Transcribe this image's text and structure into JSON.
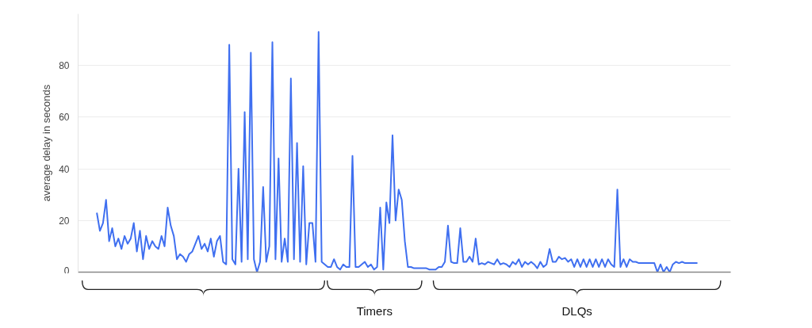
{
  "chart_data": {
    "type": "line",
    "ylabel": "average delay in seconds",
    "categories": [
      null,
      null,
      null,
      null,
      null,
      null,
      null,
      null,
      null,
      null,
      null,
      null,
      null,
      null,
      null,
      null,
      null,
      null,
      null,
      null,
      null,
      null,
      null,
      null,
      null,
      null,
      null,
      null,
      null,
      null,
      null,
      null,
      null,
      null,
      null,
      null,
      null,
      null,
      null,
      null,
      null,
      null,
      null,
      null,
      null,
      null,
      null,
      null,
      null,
      null,
      null,
      null,
      null,
      null,
      null,
      null,
      null,
      null,
      null,
      null,
      null,
      null,
      null,
      null,
      null,
      null,
      null,
      null,
      null,
      null,
      null,
      null,
      null,
      null,
      null,
      null,
      null,
      null,
      null,
      null,
      null,
      null,
      null,
      null,
      null,
      null,
      null,
      null,
      null,
      null,
      null,
      null,
      null,
      null,
      null,
      null,
      null,
      null,
      null,
      null,
      null,
      null,
      null,
      null,
      null,
      null,
      null,
      null,
      null,
      null,
      null,
      null,
      null,
      null,
      null,
      null,
      null,
      null,
      null,
      null,
      null,
      null,
      null,
      null,
      null,
      null,
      null,
      null,
      null,
      null,
      null,
      null,
      null,
      null,
      null,
      null,
      null,
      null,
      null,
      null,
      null,
      null,
      null,
      null,
      null,
      null,
      null,
      null,
      null,
      null,
      null,
      null,
      null,
      null,
      null,
      null,
      null,
      null,
      null,
      null,
      null,
      null,
      null,
      null,
      null,
      null,
      null,
      null,
      null,
      null,
      null,
      null,
      null,
      null,
      null,
      null,
      null,
      null,
      null,
      null,
      null,
      null,
      null,
      null,
      null,
      null,
      null,
      null,
      null,
      null,
      null,
      null,
      null,
      null,
      null,
      null
    ],
    "series": [
      {
        "color": "#3f6ff0",
        "values": [
          23,
          16,
          19,
          28,
          12,
          17,
          10,
          13,
          9,
          14,
          11,
          13,
          19,
          8,
          16,
          5,
          14,
          9,
          12,
          10,
          9,
          14,
          10,
          25,
          18,
          14,
          5,
          7,
          6,
          4,
          7,
          8,
          11,
          14,
          9,
          11,
          8,
          13,
          6,
          12,
          14,
          4,
          3,
          88,
          5,
          3,
          40,
          4,
          62,
          5,
          85,
          5,
          0,
          4,
          33,
          4,
          10,
          89,
          5,
          44,
          4,
          13,
          4,
          75,
          5,
          50,
          4,
          41,
          3,
          19,
          19,
          4,
          93,
          4,
          3,
          2,
          2,
          5,
          2,
          1,
          3,
          2,
          2,
          45,
          2,
          2,
          3,
          4,
          2,
          3,
          1,
          2,
          25,
          1,
          27,
          19,
          53,
          20,
          32,
          28,
          12,
          2,
          2,
          1.5,
          1.5,
          1.5,
          1.5,
          1.5,
          1,
          1,
          1,
          2,
          2,
          4,
          18,
          4,
          3.5,
          3.5,
          17,
          4,
          4,
          6,
          4,
          13,
          3,
          3.5,
          3,
          4,
          3.5,
          3,
          5,
          3,
          3.5,
          3,
          2,
          4,
          3,
          5,
          2,
          4,
          3,
          4,
          3,
          1.5,
          4,
          2,
          3,
          9,
          4,
          4,
          6,
          5,
          5.5,
          4,
          5,
          2,
          5,
          2,
          5,
          2,
          5,
          2,
          5,
          2,
          5,
          2,
          5,
          3,
          2,
          32,
          2,
          5,
          2,
          5,
          4,
          4,
          3.5,
          3.5,
          3.5,
          3.5,
          3.5,
          3.5,
          0,
          3,
          0,
          2,
          0,
          3,
          4,
          3.5,
          4,
          3.5,
          3.5,
          3.5,
          3.5,
          3.5
        ]
      }
    ],
    "ylim": [
      0,
      100
    ],
    "yticks": [
      0,
      20,
      40,
      60,
      80
    ],
    "grid": "y",
    "tick_labels": "y",
    "annotations": [
      "Timers",
      "DLQs"
    ]
  }
}
